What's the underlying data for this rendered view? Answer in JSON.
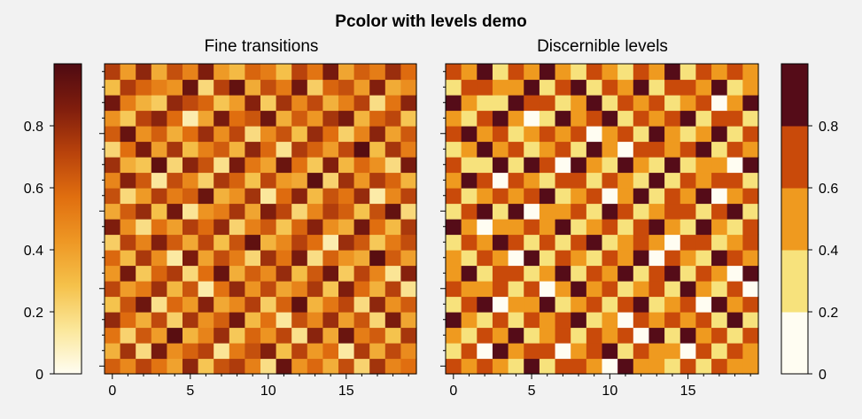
{
  "figure": {
    "suptitle": "Pcolor with levels demo"
  },
  "chart_data": [
    {
      "type": "heatmap",
      "title": "Fine transitions",
      "colormap": "afmhot_r",
      "shading": "continuous",
      "x_ticks": [
        0,
        5,
        10,
        15
      ],
      "xlim": [
        -0.5,
        19.5
      ],
      "ylim": [
        -0.5,
        19.5
      ],
      "y_ticklabels": "hidden",
      "colorbar": {
        "placement": "left",
        "ticks": [
          "0",
          "0.2",
          "0.4",
          "0.6",
          "0.8"
        ],
        "range": [
          0,
          1
        ],
        "colors": [
          "#fffdf2",
          "#fbe79a",
          "#f5c14a",
          "#ee9724",
          "#e06e0f",
          "#b8420c",
          "#7f1d0d",
          "#4f0a12"
        ]
      },
      "values": [
        [
          0.62,
          0.48,
          0.71,
          0.55,
          0.39,
          0.82,
          0.27,
          0.66,
          0.74,
          0.51,
          0.18,
          0.93,
          0.44,
          0.59,
          0.35,
          0.68,
          0.22,
          0.77,
          0.49,
          0.57
        ],
        [
          0.34,
          0.77,
          0.19,
          0.88,
          0.46,
          0.61,
          0.72,
          0.15,
          0.53,
          0.67,
          0.85,
          0.29,
          0.71,
          0.42,
          0.58,
          0.13,
          0.74,
          0.36,
          0.69,
          0.47
        ],
        [
          0.55,
          0.22,
          0.64,
          0.41,
          0.97,
          0.33,
          0.5,
          0.79,
          0.26,
          0.6,
          0.44,
          0.7,
          0.17,
          0.83,
          0.37,
          0.92,
          0.52,
          0.63,
          0.28,
          0.76
        ],
        [
          0.81,
          0.58,
          0.35,
          0.69,
          0.23,
          0.76,
          0.45,
          0.62,
          0.9,
          0.31,
          0.56,
          0.14,
          0.67,
          0.48,
          0.79,
          0.4,
          0.65,
          0.21,
          0.87,
          0.38
        ],
        [
          0.28,
          0.66,
          0.91,
          0.17,
          0.59,
          0.42,
          0.84,
          0.37,
          0.48,
          0.73,
          0.24,
          0.61,
          0.95,
          0.33,
          0.54,
          0.7,
          0.19,
          0.82,
          0.45,
          0.63
        ],
        [
          0.7,
          0.41,
          0.53,
          0.78,
          0.32,
          0.65,
          0.12,
          0.56,
          0.81,
          0.44,
          0.69,
          0.38,
          0.5,
          0.75,
          0.27,
          0.86,
          0.58,
          0.34,
          0.72,
          0.16
        ],
        [
          0.43,
          0.89,
          0.26,
          0.6,
          0.74,
          0.2,
          0.57,
          0.93,
          0.35,
          0.62,
          0.47,
          0.8,
          0.3,
          0.64,
          0.91,
          0.25,
          0.71,
          0.49,
          0.15,
          0.84
        ],
        [
          0.59,
          0.31,
          0.75,
          0.46,
          0.13,
          0.87,
          0.39,
          0.68,
          0.52,
          0.21,
          0.78,
          0.55,
          0.88,
          0.18,
          0.61,
          0.44,
          0.36,
          0.97,
          0.63,
          0.4
        ],
        [
          0.24,
          0.72,
          0.5,
          0.85,
          0.63,
          0.37,
          0.7,
          0.29,
          0.66,
          0.95,
          0.33,
          0.48,
          0.72,
          0.57,
          0.11,
          0.79,
          0.64,
          0.26,
          0.53,
          0.68
        ],
        [
          0.86,
          0.46,
          0.18,
          0.56,
          0.4,
          0.73,
          0.58,
          0.81,
          0.22,
          0.51,
          0.64,
          0.27,
          0.6,
          0.84,
          0.46,
          0.35,
          0.9,
          0.57,
          0.31,
          0.75
        ],
        [
          0.37,
          0.63,
          0.8,
          0.29,
          0.9,
          0.15,
          0.44,
          0.52,
          0.76,
          0.38,
          0.86,
          0.7,
          0.21,
          0.49,
          0.73,
          0.62,
          0.28,
          0.67,
          0.94,
          0.2
        ],
        [
          0.67,
          0.2,
          0.42,
          0.73,
          0.52,
          0.62,
          0.92,
          0.34,
          0.45,
          0.77,
          0.14,
          0.58,
          0.83,
          0.31,
          0.66,
          0.55,
          0.8,
          0.12,
          0.48,
          0.71
        ],
        [
          0.49,
          0.84,
          0.64,
          0.14,
          0.68,
          0.48,
          0.23,
          0.75,
          0.61,
          0.28,
          0.7,
          0.42,
          0.37,
          0.96,
          0.22,
          0.78,
          0.43,
          0.74,
          0.6,
          0.33
        ],
        [
          0.78,
          0.35,
          0.27,
          0.95,
          0.21,
          0.83,
          0.66,
          0.17,
          0.88,
          0.54,
          0.39,
          0.92,
          0.56,
          0.26,
          0.85,
          0.32,
          0.59,
          0.45,
          0.19,
          0.88
        ],
        [
          0.21,
          0.57,
          0.87,
          0.4,
          0.76,
          0.3,
          0.51,
          0.63,
          0.33,
          0.82,
          0.59,
          0.16,
          0.74,
          0.61,
          0.41,
          0.69,
          0.98,
          0.3,
          0.76,
          0.52
        ],
        [
          0.63,
          0.93,
          0.45,
          0.62,
          0.35,
          0.57,
          0.79,
          0.46,
          0.7,
          0.19,
          0.47,
          0.66,
          0.29,
          0.8,
          0.57,
          0.23,
          0.5,
          0.83,
          0.39,
          0.64
        ],
        [
          0.45,
          0.26,
          0.71,
          0.83,
          0.58,
          0.11,
          0.38,
          0.88,
          0.57,
          0.65,
          0.91,
          0.35,
          0.63,
          0.43,
          0.76,
          0.88,
          0.33,
          0.6,
          0.7,
          0.27
        ],
        [
          0.9,
          0.52,
          0.34,
          0.25,
          0.81,
          0.69,
          0.6,
          0.27,
          0.41,
          0.84,
          0.25,
          0.77,
          0.48,
          0.69,
          0.34,
          0.51,
          0.72,
          0.18,
          0.55,
          0.83
        ],
        [
          0.3,
          0.74,
          0.6,
          0.51,
          0.44,
          0.92,
          0.2,
          0.72,
          0.94,
          0.36,
          0.68,
          0.53,
          0.9,
          0.24,
          0.6,
          0.67,
          0.41,
          0.85,
          0.36,
          0.46
        ],
        [
          0.73,
          0.41,
          0.82,
          0.36,
          0.67,
          0.5,
          0.86,
          0.42,
          0.31,
          0.6,
          0.52,
          0.29,
          0.71,
          0.55,
          0.88,
          0.38,
          0.62,
          0.52,
          0.79,
          0.58
        ]
      ]
    },
    {
      "type": "heatmap",
      "title": "Discernible levels",
      "colormap": "afmhot_r",
      "shading": "discrete levels",
      "x_ticks": [
        0,
        5,
        10,
        15
      ],
      "xlim": [
        -0.5,
        19.5
      ],
      "ylim": [
        -0.5,
        19.5
      ],
      "y_ticklabels": "hidden",
      "levels": [
        0,
        0.2,
        0.4,
        0.6,
        0.8,
        1.0
      ],
      "colorbar": {
        "placement": "right",
        "ticks": [
          "0",
          "0.2",
          "0.4",
          "0.6",
          "0.8"
        ],
        "range": [
          0,
          1
        ],
        "level_colors": [
          "#fffdf2",
          "#f7e27c",
          "#ef9a1f",
          "#c94a0a",
          "#550c18"
        ]
      },
      "values_source": "same data as Fine transitions"
    }
  ]
}
